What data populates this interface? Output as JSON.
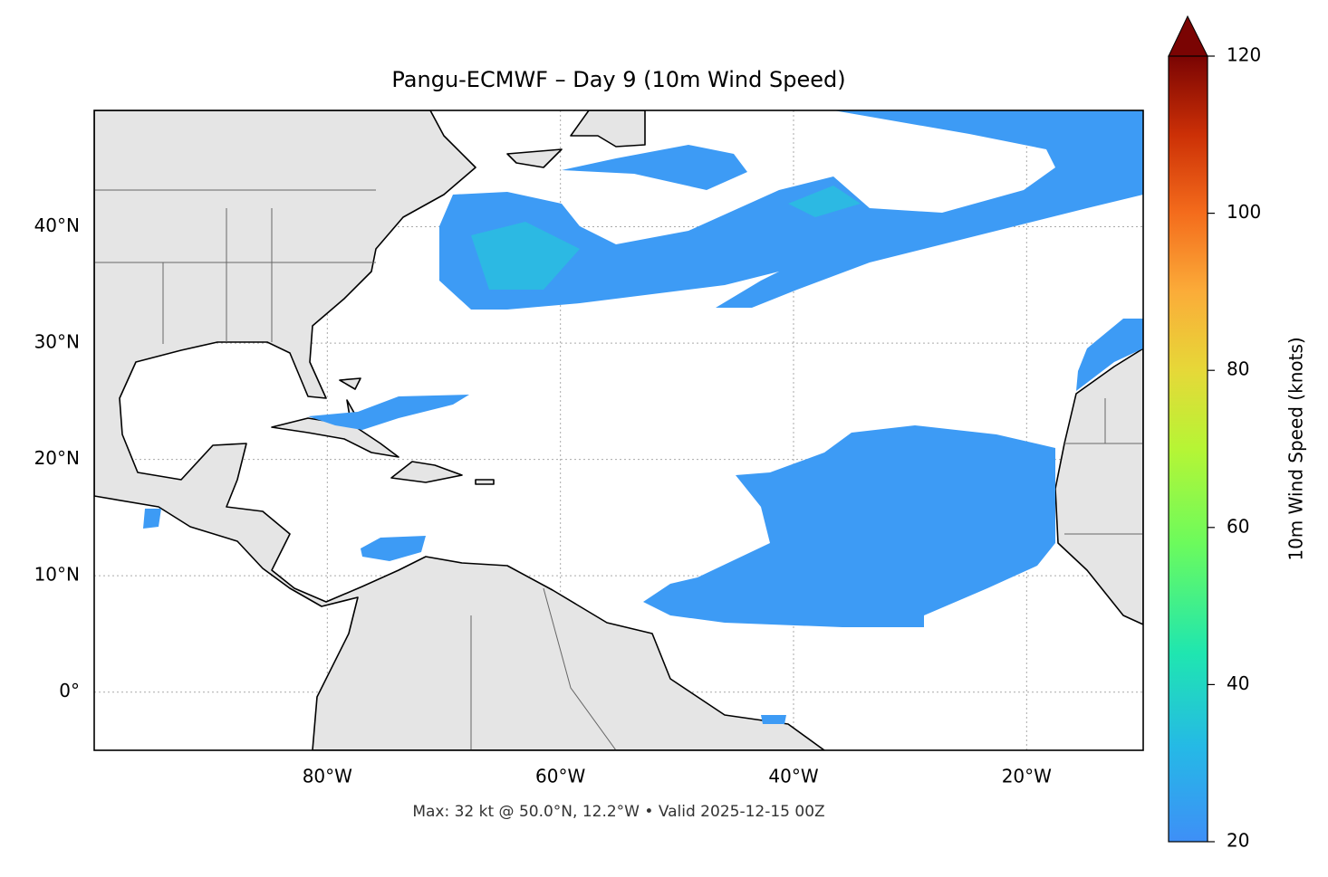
{
  "map": {
    "title": "Pangu-ECMWF – Day 9 (10m Wind Speed)",
    "footer": "Max: 32 kt @ 50.0°N, 12.2°W • Valid 2025-12-15 00Z",
    "xlim": [
      -100,
      -10
    ],
    "ylim": [
      -5,
      50
    ],
    "xticks": [
      {
        "value": -80,
        "label": "80°W"
      },
      {
        "value": -60,
        "label": "60°W"
      },
      {
        "value": -40,
        "label": "40°W"
      },
      {
        "value": -20,
        "label": "20°W"
      }
    ],
    "yticks": [
      {
        "value": 0,
        "label": "0°"
      },
      {
        "value": 10,
        "label": "10°N"
      },
      {
        "value": 20,
        "label": "20°N"
      },
      {
        "value": 30,
        "label": "30°N"
      },
      {
        "value": 40,
        "label": "40°N"
      }
    ],
    "grid": true,
    "colorbar": {
      "label": "10m Wind Speed (knots)",
      "lim": [
        20,
        120
      ],
      "ticks": [
        20,
        40,
        60,
        80,
        100,
        120
      ]
    }
  }
}
